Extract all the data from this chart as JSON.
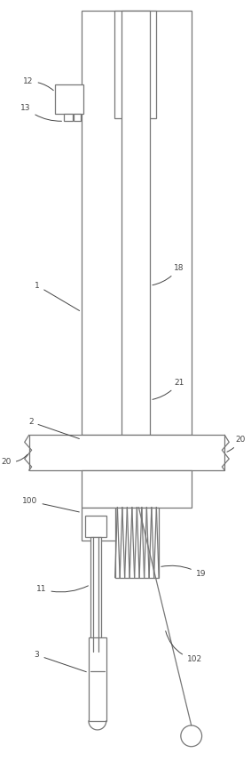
{
  "bg_color": "#ffffff",
  "lc": "#777777",
  "lw": 0.9,
  "fig_w": 2.83,
  "fig_h": 8.74,
  "dpi": 100,
  "label_fs": 6.5,
  "label_color": "#444444"
}
